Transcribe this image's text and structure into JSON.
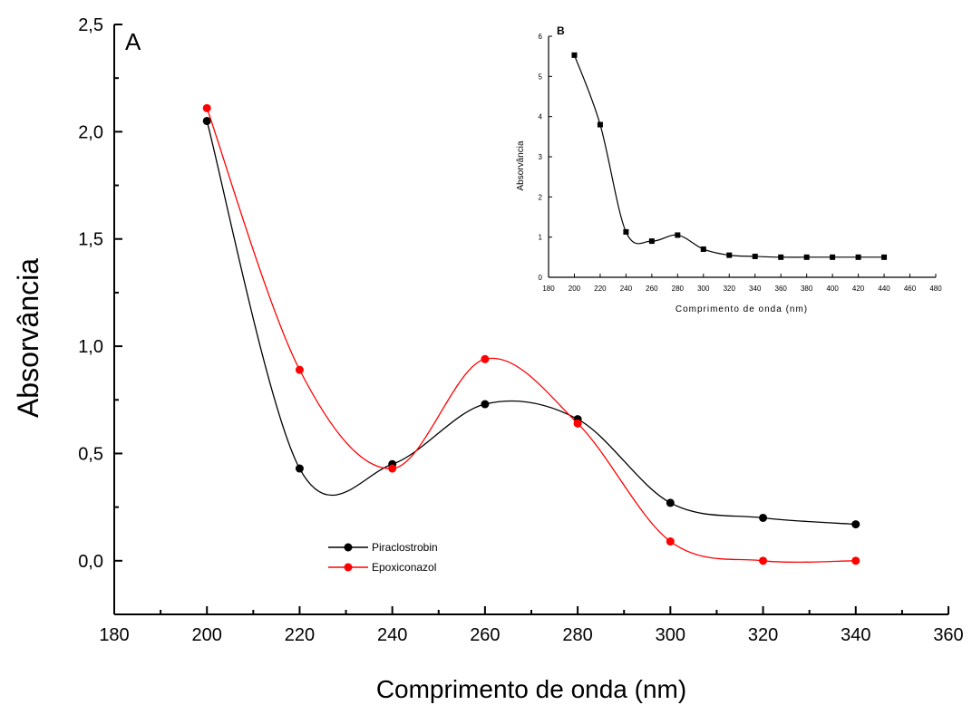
{
  "chart_data": [
    {
      "type": "line",
      "panel_label": "A",
      "xlabel": "Comprimento de onda (nm)",
      "ylabel": "Absorvância",
      "xlim": [
        180,
        360
      ],
      "ylim": [
        -0.25,
        2.5
      ],
      "xticks": [
        180,
        200,
        220,
        240,
        260,
        280,
        300,
        320,
        340,
        360
      ],
      "yticks": [
        0.0,
        0.5,
        1.0,
        1.5,
        2.0,
        2.5
      ],
      "xtick_labels": [
        "180",
        "200",
        "220",
        "240",
        "260",
        "280",
        "300",
        "320",
        "340",
        "360"
      ],
      "ytick_labels": [
        "0,0",
        "0,5",
        "1,0",
        "1,5",
        "2,0",
        "2,5"
      ],
      "legend_position": "bottom-center",
      "series": [
        {
          "name": "Piraclostrobin",
          "color": "#000000",
          "marker": "circle",
          "x": [
            200,
            220,
            240,
            260,
            280,
            300,
            320,
            340
          ],
          "y": [
            2.05,
            0.43,
            0.45,
            0.73,
            0.66,
            0.27,
            0.2,
            0.17
          ]
        },
        {
          "name": "Epoxiconazol",
          "color": "#ff0000",
          "marker": "circle",
          "x": [
            200,
            220,
            240,
            260,
            280,
            300,
            320,
            340
          ],
          "y": [
            2.11,
            0.89,
            0.43,
            0.94,
            0.64,
            0.09,
            0.0,
            0.0
          ]
        }
      ]
    },
    {
      "type": "line",
      "panel_label": "B",
      "xlabel": "Comprimento de onda (nm)",
      "ylabel": "Absorvância",
      "xlim": [
        180,
        480
      ],
      "ylim": [
        0,
        6
      ],
      "xticks": [
        180,
        200,
        220,
        240,
        260,
        280,
        300,
        320,
        340,
        360,
        380,
        400,
        420,
        440,
        460,
        480
      ],
      "yticks": [
        0,
        1,
        2,
        3,
        4,
        5,
        6
      ],
      "xtick_labels": [
        "180",
        "200",
        "220",
        "240",
        "260",
        "280",
        "300",
        "320",
        "340",
        "360",
        "380",
        "400",
        "420",
        "440",
        "460",
        "480"
      ],
      "ytick_labels": [
        "0",
        "1",
        "2",
        "3",
        "4",
        "5",
        "6"
      ],
      "series": [
        {
          "color": "#000000",
          "marker": "square",
          "x": [
            200,
            220,
            240,
            260,
            280,
            300,
            320,
            340,
            360,
            380,
            400,
            420,
            440
          ],
          "y": [
            5.53,
            3.8,
            1.13,
            0.9,
            1.05,
            0.7,
            0.55,
            0.52,
            0.5,
            0.5,
            0.5,
            0.5,
            0.5
          ]
        }
      ]
    }
  ]
}
